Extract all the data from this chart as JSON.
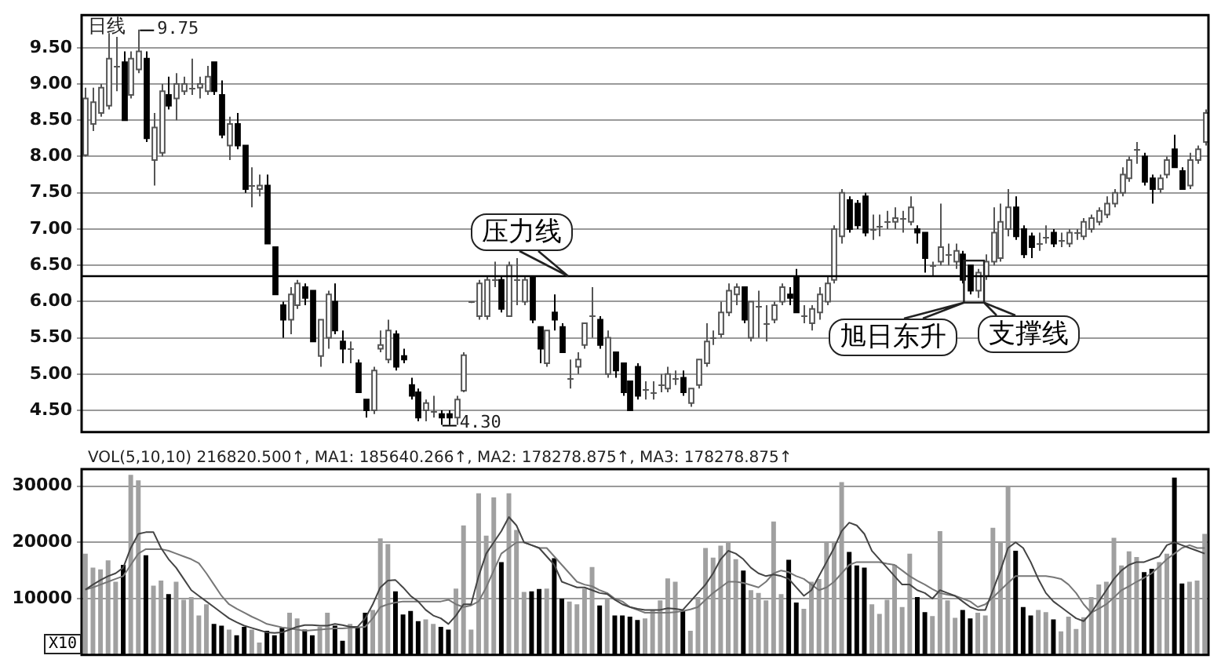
{
  "chart_data": [
    {
      "type": "candlestick",
      "title": "日线",
      "categories": [
        null,
        null,
        null,
        null,
        null,
        null,
        null,
        null,
        null,
        null,
        null,
        null,
        null,
        null,
        null,
        null,
        null,
        null,
        null,
        null,
        null,
        null,
        null,
        null,
        null,
        null,
        null,
        null,
        null,
        null,
        null,
        null,
        null,
        null,
        null,
        null,
        null,
        null,
        null,
        null,
        null,
        null,
        null,
        null,
        null,
        null,
        null,
        null,
        null,
        null,
        null,
        null,
        null,
        null,
        null,
        null,
        null,
        null,
        null,
        null,
        null,
        null,
        null,
        null,
        null,
        null,
        null,
        null,
        null,
        null,
        null,
        null,
        null,
        null,
        null,
        null,
        null,
        null,
        null,
        null,
        null,
        null,
        null,
        null,
        null,
        null,
        null,
        null,
        null,
        null,
        null,
        null,
        null,
        null,
        null,
        null,
        null,
        null,
        null,
        null,
        null,
        null,
        null,
        null,
        null,
        null,
        null,
        null,
        null,
        null,
        null,
        null,
        null,
        null,
        null,
        null,
        null,
        null,
        null,
        null,
        null,
        null,
        null,
        null,
        null,
        null,
        null,
        null,
        null,
        null,
        null,
        null,
        null,
        null,
        null,
        null,
        null,
        null,
        null,
        null,
        null,
        null,
        null,
        null,
        null,
        null,
        null,
        null,
        null
      ],
      "ohlc": [
        [
          8.02,
          8.95,
          8.0,
          8.8
        ],
        [
          8.45,
          8.95,
          8.35,
          8.75
        ],
        [
          8.6,
          9.0,
          8.55,
          8.95
        ],
        [
          8.7,
          9.7,
          8.65,
          9.35
        ],
        [
          9.25,
          9.65,
          8.9,
          9.25
        ],
        [
          9.3,
          9.45,
          8.5,
          8.5
        ],
        [
          8.85,
          9.45,
          8.8,
          9.35
        ],
        [
          9.2,
          9.75,
          9.15,
          9.45
        ],
        [
          9.35,
          9.45,
          8.2,
          8.25
        ],
        [
          7.95,
          8.6,
          7.6,
          8.4
        ],
        [
          8.05,
          9.0,
          8.0,
          8.9
        ],
        [
          8.85,
          9.1,
          8.65,
          8.7
        ],
        [
          8.8,
          9.15,
          8.5,
          9.0
        ],
        [
          8.9,
          9.1,
          8.85,
          9.0
        ],
        [
          8.95,
          9.35,
          8.85,
          8.95
        ],
        [
          8.95,
          9.1,
          8.8,
          9.0
        ],
        [
          8.9,
          9.25,
          8.85,
          9.1
        ],
        [
          9.3,
          9.3,
          8.85,
          8.9
        ],
        [
          8.85,
          9.05,
          8.25,
          8.3
        ],
        [
          8.15,
          8.55,
          7.95,
          8.45
        ],
        [
          8.45,
          8.6,
          8.1,
          8.15
        ],
        [
          8.15,
          8.15,
          7.5,
          7.55
        ],
        [
          7.6,
          7.85,
          7.3,
          7.6
        ],
        [
          7.55,
          7.75,
          7.45,
          7.6
        ],
        [
          7.6,
          7.75,
          6.8,
          6.8
        ],
        [
          6.75,
          6.75,
          6.1,
          6.1
        ],
        [
          5.95,
          6.0,
          5.5,
          5.75
        ],
        [
          5.75,
          6.2,
          5.55,
          6.1
        ],
        [
          5.95,
          6.3,
          5.9,
          6.25
        ],
        [
          6.2,
          6.25,
          5.95,
          6.05
        ],
        [
          6.15,
          6.15,
          5.45,
          5.45
        ],
        [
          5.25,
          5.75,
          5.1,
          5.75
        ],
        [
          5.5,
          6.15,
          5.35,
          6.1
        ],
        [
          6.0,
          6.25,
          5.55,
          5.6
        ],
        [
          5.45,
          5.6,
          5.15,
          5.35
        ],
        [
          5.35,
          5.45,
          5.15,
          5.35
        ],
        [
          5.15,
          5.2,
          4.75,
          4.75
        ],
        [
          4.65,
          4.65,
          4.4,
          4.5
        ],
        [
          4.5,
          5.1,
          4.45,
          5.05
        ],
        [
          5.35,
          5.6,
          5.3,
          5.4
        ],
        [
          5.2,
          5.75,
          5.15,
          5.6
        ],
        [
          5.55,
          5.6,
          5.05,
          5.1
        ],
        [
          5.25,
          5.35,
          5.15,
          5.2
        ],
        [
          4.85,
          4.95,
          4.65,
          4.7
        ],
        [
          4.75,
          4.8,
          4.35,
          4.4
        ],
        [
          4.5,
          4.65,
          4.35,
          4.6
        ],
        [
          4.5,
          4.7,
          4.4,
          4.5
        ],
        [
          4.45,
          4.5,
          4.3,
          4.4
        ],
        [
          4.45,
          4.5,
          4.3,
          4.4
        ],
        [
          4.4,
          4.7,
          4.3,
          4.65
        ],
        [
          4.77,
          5.3,
          4.75,
          5.26
        ],
        [
          6.0,
          6.0,
          5.98,
          6.0
        ],
        [
          5.8,
          6.3,
          5.75,
          6.25
        ],
        [
          5.8,
          6.35,
          5.75,
          6.3
        ],
        [
          6.3,
          6.55,
          6.2,
          6.3
        ],
        [
          6.3,
          6.35,
          5.85,
          5.9
        ],
        [
          5.8,
          6.55,
          5.8,
          6.5
        ],
        [
          6.3,
          6.6,
          5.95,
          6.3
        ],
        [
          6.0,
          6.35,
          5.95,
          6.3
        ],
        [
          6.35,
          6.35,
          5.7,
          5.75
        ],
        [
          5.65,
          5.65,
          5.15,
          5.35
        ],
        [
          5.15,
          5.6,
          5.1,
          5.6
        ],
        [
          5.85,
          6.1,
          5.6,
          5.75
        ],
        [
          5.65,
          5.7,
          5.3,
          5.3
        ],
        [
          4.95,
          5.2,
          4.8,
          4.95
        ],
        [
          5.1,
          5.3,
          5.0,
          5.2
        ],
        [
          5.4,
          5.7,
          5.35,
          5.7
        ],
        [
          5.8,
          6.2,
          5.5,
          5.8
        ],
        [
          5.75,
          5.8,
          5.35,
          5.4
        ],
        [
          5.0,
          5.6,
          4.95,
          5.5
        ],
        [
          5.3,
          5.3,
          4.95,
          5.05
        ],
        [
          5.15,
          5.15,
          4.7,
          4.75
        ],
        [
          4.9,
          4.9,
          4.5,
          4.5
        ],
        [
          5.1,
          5.15,
          4.65,
          4.7
        ],
        [
          4.8,
          4.9,
          4.65,
          4.8
        ],
        [
          4.75,
          4.9,
          4.65,
          4.75
        ],
        [
          4.85,
          5.0,
          4.75,
          4.85
        ],
        [
          4.8,
          5.1,
          4.75,
          5.0
        ],
        [
          4.95,
          5.05,
          4.85,
          4.95
        ],
        [
          4.95,
          5.05,
          4.7,
          4.75
        ],
        [
          4.6,
          4.8,
          4.55,
          4.8
        ],
        [
          4.85,
          5.2,
          4.8,
          5.2
        ],
        [
          5.15,
          5.7,
          5.1,
          5.45
        ],
        [
          5.5,
          5.6,
          5.4,
          5.5
        ],
        [
          5.55,
          6.0,
          5.5,
          5.85
        ],
        [
          5.85,
          6.25,
          5.8,
          6.15
        ],
        [
          6.1,
          6.25,
          5.95,
          6.2
        ],
        [
          6.2,
          6.2,
          5.7,
          5.75
        ],
        [
          5.5,
          6.0,
          5.45,
          6.0
        ],
        [
          5.95,
          6.15,
          5.5,
          5.95
        ],
        [
          5.7,
          5.95,
          5.45,
          5.7
        ],
        [
          5.75,
          6.0,
          5.7,
          5.95
        ],
        [
          6.0,
          6.25,
          5.95,
          6.2
        ],
        [
          6.1,
          6.2,
          5.95,
          6.05
        ],
        [
          6.35,
          6.45,
          5.85,
          5.85
        ],
        [
          5.8,
          5.95,
          5.7,
          5.8
        ],
        [
          5.7,
          5.95,
          5.6,
          5.9
        ],
        [
          5.85,
          6.2,
          5.75,
          6.1
        ],
        [
          6.0,
          6.35,
          5.95,
          6.25
        ],
        [
          6.3,
          7.05,
          6.25,
          7.0
        ],
        [
          6.9,
          7.55,
          6.8,
          7.5
        ],
        [
          7.4,
          7.45,
          6.95,
          7.0
        ],
        [
          7.35,
          7.4,
          7.0,
          7.05
        ],
        [
          7.45,
          7.5,
          6.9,
          6.95
        ],
        [
          7.0,
          7.2,
          6.85,
          7.0
        ],
        [
          7.05,
          7.2,
          6.9,
          7.05
        ],
        [
          7.1,
          7.25,
          7.0,
          7.1
        ],
        [
          7.1,
          7.3,
          7.0,
          7.15
        ],
        [
          7.15,
          7.25,
          6.95,
          7.15
        ],
        [
          7.1,
          7.45,
          7.05,
          7.3
        ],
        [
          7.0,
          7.05,
          6.8,
          6.95
        ],
        [
          6.95,
          6.95,
          6.4,
          6.6
        ],
        [
          6.5,
          6.55,
          6.35,
          6.5
        ],
        [
          6.55,
          7.35,
          6.5,
          6.75
        ],
        [
          6.65,
          6.8,
          6.5,
          6.65
        ],
        [
          6.55,
          6.8,
          6.45,
          6.7
        ],
        [
          6.65,
          6.7,
          6.25,
          6.3
        ],
        [
          6.5,
          6.5,
          6.1,
          6.15
        ],
        [
          6.15,
          6.45,
          6.05,
          6.4
        ],
        [
          6.35,
          6.65,
          6.3,
          6.55
        ],
        [
          6.55,
          7.3,
          6.5,
          6.95
        ],
        [
          6.6,
          7.35,
          6.55,
          7.1
        ],
        [
          7.0,
          7.55,
          6.9,
          7.3
        ],
        [
          7.3,
          7.45,
          6.85,
          6.9
        ],
        [
          7.0,
          7.05,
          6.6,
          6.65
        ],
        [
          6.9,
          6.95,
          6.6,
          6.75
        ],
        [
          6.8,
          6.95,
          6.7,
          6.8
        ],
        [
          6.9,
          7.05,
          6.8,
          6.9
        ],
        [
          6.95,
          7.0,
          6.75,
          6.8
        ],
        [
          6.85,
          6.95,
          6.75,
          6.85
        ],
        [
          6.8,
          7.0,
          6.75,
          6.95
        ],
        [
          6.95,
          7.0,
          6.85,
          6.95
        ],
        [
          6.9,
          7.15,
          6.85,
          7.1
        ],
        [
          7.0,
          7.2,
          6.95,
          7.15
        ],
        [
          7.1,
          7.3,
          7.05,
          7.25
        ],
        [
          7.2,
          7.45,
          7.15,
          7.35
        ],
        [
          7.35,
          7.55,
          7.3,
          7.5
        ],
        [
          7.5,
          7.85,
          7.45,
          7.75
        ],
        [
          7.7,
          8.0,
          7.65,
          7.95
        ],
        [
          8.1,
          8.2,
          7.9,
          8.1
        ],
        [
          8.0,
          8.05,
          7.6,
          7.65
        ],
        [
          7.7,
          7.75,
          7.35,
          7.55
        ],
        [
          7.55,
          7.75,
          7.5,
          7.7
        ],
        [
          7.75,
          8.0,
          7.7,
          7.95
        ],
        [
          8.1,
          8.3,
          7.85,
          7.85
        ],
        [
          7.8,
          7.85,
          7.55,
          7.55
        ],
        [
          7.6,
          8.05,
          7.55,
          7.95
        ],
        [
          7.95,
          8.15,
          7.9,
          8.1
        ],
        [
          8.2,
          8.65,
          8.15,
          8.6
        ]
      ],
      "ylim": [
        4.2,
        9.95
      ],
      "yticks": [
        {
          "value": 4.5,
          "label": "4.50"
        },
        {
          "value": 5.0,
          "label": "5.00"
        },
        {
          "value": 5.5,
          "label": "5.50"
        },
        {
          "value": 6.0,
          "label": "6.00"
        },
        {
          "value": 6.5,
          "label": "6.50"
        },
        {
          "value": 7.0,
          "label": "7.00"
        },
        {
          "value": 7.5,
          "label": "7.50"
        },
        {
          "value": 8.0,
          "label": "8.00"
        },
        {
          "value": 8.5,
          "label": "8.50"
        },
        {
          "value": 9.0,
          "label": "9.00"
        },
        {
          "value": 9.5,
          "label": "9.50"
        }
      ],
      "grid": "y",
      "legend": false,
      "ref_lines": [
        {
          "axis": "y",
          "value": 6.35,
          "color": "#000000"
        }
      ],
      "annotations": [
        "压力线",
        "旭日东升",
        "支撑线",
        "9.75",
        "4.30"
      ]
    },
    {
      "type": "bar",
      "title": "VOL(5,10,10) 216820.500↑, MA1: 185640.266↑, MA2: 178278.875↑, MA3: 178278.875↑",
      "categories": [
        null,
        null,
        null,
        null,
        null,
        null,
        null,
        null,
        null,
        null,
        null,
        null,
        null,
        null,
        null,
        null,
        null,
        null,
        null,
        null,
        null,
        null,
        null,
        null,
        null,
        null,
        null,
        null,
        null,
        null,
        null,
        null,
        null,
        null,
        null,
        null,
        null,
        null,
        null,
        null,
        null,
        null,
        null,
        null,
        null,
        null,
        null,
        null,
        null,
        null,
        null,
        null,
        null,
        null,
        null,
        null,
        null,
        null,
        null,
        null,
        null,
        null,
        null,
        null,
        null,
        null,
        null,
        null,
        null,
        null,
        null,
        null,
        null,
        null,
        null,
        null,
        null,
        null,
        null,
        null,
        null,
        null,
        null,
        null,
        null,
        null,
        null,
        null,
        null,
        null,
        null,
        null,
        null,
        null,
        null,
        null,
        null,
        null,
        null,
        null,
        null,
        null,
        null,
        null,
        null,
        null,
        null,
        null,
        null,
        null,
        null,
        null,
        null,
        null,
        null,
        null,
        null,
        null,
        null,
        null,
        null,
        null,
        null,
        null,
        null,
        null,
        null,
        null,
        null,
        null,
        null,
        null,
        null,
        null,
        null,
        null,
        null,
        null,
        null,
        null,
        null,
        null,
        null,
        null,
        null,
        null,
        null,
        null,
        null
      ],
      "series": [
        {
          "type": "bar",
          "values": [
            18000,
            15500,
            15200,
            16800,
            13000,
            16000,
            32000,
            31000,
            17700,
            12300,
            13200,
            10800,
            13000,
            9800,
            10300,
            7000,
            9000,
            5500,
            5200,
            4500,
            3500,
            5000,
            4500,
            2200,
            4300,
            3500,
            4800,
            7500,
            6500,
            4500,
            3500,
            5000,
            7500,
            5200,
            2500,
            5500,
            5000,
            7500,
            8000,
            20700,
            19700,
            11300,
            7200,
            7800,
            6000,
            6300,
            5500,
            5000,
            4500,
            11800,
            23000,
            4500,
            28700,
            21200,
            28000,
            16500,
            28700,
            22200,
            11200,
            11300,
            11700,
            11800,
            17200,
            10000,
            9500,
            9000,
            11800,
            15600,
            8800,
            10000,
            7000,
            7000,
            6800,
            6200,
            6500,
            8000,
            9700,
            13600,
            13000,
            7800,
            4300,
            10300,
            19000,
            17300,
            19400,
            20000,
            17000,
            15000,
            11500,
            11000,
            9700,
            23700,
            10800,
            16900,
            9300,
            8200,
            13000,
            13500,
            20000,
            20000,
            30700,
            18300,
            15900,
            15500,
            9000,
            7300,
            9800,
            16000,
            8500,
            18000,
            10300,
            7600,
            6900,
            22000,
            9700,
            6600,
            8000,
            6500,
            7500,
            7000,
            22600,
            20000,
            29800,
            18500,
            8500,
            7000,
            8000,
            7600,
            6300,
            4200,
            6800,
            4600,
            6700,
            10300,
            12500,
            13000,
            20800,
            15900,
            18400,
            17400,
            14700,
            15300,
            16500,
            18000,
            31500,
            12700,
            13000,
            13200,
            21500
          ],
          "colors": [
            "#a0a0a0",
            "#a0a0a0",
            "#a0a0a0",
            "#a0a0a0",
            "#a0a0a0",
            "#000000",
            "#a0a0a0",
            "#a0a0a0",
            "#000000",
            "#a0a0a0",
            "#a0a0a0",
            "#000000",
            "#a0a0a0",
            "#a0a0a0",
            "#a0a0a0",
            "#a0a0a0",
            "#a0a0a0",
            "#000000",
            "#000000",
            "#a0a0a0",
            "#000000",
            "#000000",
            "#a0a0a0",
            "#a0a0a0",
            "#000000",
            "#000000",
            "#000000",
            "#a0a0a0",
            "#a0a0a0",
            "#000000",
            "#000000",
            "#a0a0a0",
            "#a0a0a0",
            "#000000",
            "#000000",
            "#a0a0a0",
            "#000000",
            "#000000",
            "#a0a0a0",
            "#a0a0a0",
            "#a0a0a0",
            "#000000",
            "#000000",
            "#000000",
            "#000000",
            "#a0a0a0",
            "#a0a0a0",
            "#000000",
            "#000000",
            "#a0a0a0",
            "#a0a0a0",
            "#a0a0a0",
            "#a0a0a0",
            "#a0a0a0",
            "#a0a0a0",
            "#000000",
            "#a0a0a0",
            "#a0a0a0",
            "#a0a0a0",
            "#000000",
            "#000000",
            "#a0a0a0",
            "#000000",
            "#000000",
            "#a0a0a0",
            "#a0a0a0",
            "#a0a0a0",
            "#a0a0a0",
            "#000000",
            "#a0a0a0",
            "#000000",
            "#000000",
            "#000000",
            "#000000",
            "#a0a0a0",
            "#a0a0a0",
            "#a0a0a0",
            "#a0a0a0",
            "#a0a0a0",
            "#000000",
            "#a0a0a0",
            "#a0a0a0",
            "#a0a0a0",
            "#a0a0a0",
            "#a0a0a0",
            "#a0a0a0",
            "#a0a0a0",
            "#000000",
            "#a0a0a0",
            "#a0a0a0",
            "#a0a0a0",
            "#a0a0a0",
            "#a0a0a0",
            "#000000",
            "#000000",
            "#a0a0a0",
            "#a0a0a0",
            "#a0a0a0",
            "#a0a0a0",
            "#a0a0a0",
            "#a0a0a0",
            "#000000",
            "#000000",
            "#000000",
            "#a0a0a0",
            "#a0a0a0",
            "#a0a0a0",
            "#a0a0a0",
            "#a0a0a0",
            "#a0a0a0",
            "#000000",
            "#000000",
            "#a0a0a0",
            "#a0a0a0",
            "#a0a0a0",
            "#a0a0a0",
            "#000000",
            "#000000",
            "#a0a0a0",
            "#a0a0a0",
            "#a0a0a0",
            "#a0a0a0",
            "#a0a0a0",
            "#000000",
            "#000000",
            "#000000",
            "#a0a0a0",
            "#a0a0a0",
            "#000000",
            "#a0a0a0",
            "#a0a0a0",
            "#a0a0a0",
            "#a0a0a0",
            "#a0a0a0",
            "#a0a0a0",
            "#a0a0a0",
            "#a0a0a0",
            "#a0a0a0",
            "#a0a0a0",
            "#a0a0a0",
            "#000000",
            "#000000",
            "#a0a0a0",
            "#a0a0a0",
            "#000000",
            "#000000",
            "#a0a0a0",
            "#a0a0a0",
            "#a0a0a0"
          ]
        },
        {
          "type": "line",
          "color": "#444444",
          "values": [
            11600,
            12500,
            13300,
            14000,
            14500,
            15500,
            19000,
            21500,
            21800,
            21800,
            19000,
            17000,
            15500,
            13500,
            11500,
            10500,
            9500,
            8500,
            7500,
            6500,
            5800,
            5200,
            4800,
            4400,
            4000,
            3900,
            4000,
            4500,
            5000,
            5300,
            5300,
            5200,
            5200,
            5500,
            5300,
            5000,
            5000,
            6500,
            9000,
            12000,
            13200,
            13300,
            12000,
            10500,
            9500,
            8000,
            7000,
            6500,
            5500,
            7000,
            9000,
            9000,
            14000,
            18000,
            20000,
            22000,
            24500,
            23000,
            20000,
            19500,
            19000,
            17500,
            16000,
            13000,
            12500,
            12000,
            12000,
            11500,
            11000,
            10800,
            9800,
            9000,
            8500,
            8200,
            8000,
            8000,
            8000,
            8300,
            8200,
            8000,
            9500,
            11000,
            12500,
            14500,
            17000,
            18500,
            18000,
            17000,
            15500,
            14500,
            14000,
            14300,
            14000,
            13500,
            12000,
            10500,
            11500,
            14000,
            16500,
            19000,
            22000,
            23500,
            23000,
            21500,
            18500,
            17000,
            15500,
            14000,
            12500,
            12500,
            11500,
            11000,
            10000,
            11500,
            11000,
            10500,
            9500,
            8500,
            8000,
            8000,
            11500,
            15000,
            19000,
            20000,
            19000,
            16500,
            13500,
            11000,
            9500,
            8500,
            7500,
            6500,
            6000,
            7500,
            9500,
            11500,
            13500,
            15000,
            16000,
            16500,
            16500,
            17000,
            17500,
            19500,
            20000,
            19500,
            19000,
            18500,
            18000
          ]
        },
        {
          "type": "line",
          "color": "#777777",
          "values": [
            11600,
            12000,
            12500,
            13000,
            13500,
            14000,
            16000,
            18000,
            18800,
            18800,
            18800,
            18500,
            18000,
            17500,
            17000,
            16300,
            14500,
            12500,
            10500,
            9000,
            8200,
            7500,
            6800,
            6200,
            5500,
            5200,
            4900,
            4700,
            4500,
            4300,
            4400,
            4500,
            4600,
            4700,
            4700,
            4800,
            4900,
            5000,
            6500,
            8500,
            9000,
            9300,
            9500,
            9500,
            9500,
            9500,
            9500,
            9500,
            9800,
            9000,
            8500,
            8800,
            9500,
            12000,
            15000,
            18000,
            19000,
            20000,
            20000,
            19500,
            19000,
            19000,
            17500,
            16000,
            14500,
            13000,
            12500,
            12200,
            11500,
            11000,
            10000,
            9500,
            8500,
            8000,
            7500,
            7500,
            7500,
            7500,
            7600,
            7800,
            8100,
            8500,
            9800,
            11000,
            12000,
            13000,
            13000,
            12800,
            12400,
            12000,
            13000,
            14500,
            15000,
            14700,
            14000,
            13500,
            12500,
            11500,
            12000,
            13000,
            14500,
            16000,
            16500,
            16500,
            16500,
            16500,
            16200,
            16000,
            15000,
            14000,
            13200,
            12500,
            11700,
            11000,
            10700,
            10500,
            10000,
            9500,
            8500,
            9000,
            10200,
            11500,
            12800,
            14000,
            14000,
            14000,
            14000,
            14000,
            13800,
            13500,
            12500,
            11000,
            9000,
            7500,
            8200,
            9000,
            10200,
            11500,
            12200,
            13000,
            13700,
            14500,
            15700,
            17000,
            18000,
            19000,
            19500,
            19000,
            19000
          ]
        }
      ],
      "ylim": [
        0,
        33000
      ],
      "yticks": [
        10000,
        20000,
        30000
      ],
      "grid": "y",
      "legend": false,
      "annotations": [
        "X10"
      ]
    }
  ]
}
